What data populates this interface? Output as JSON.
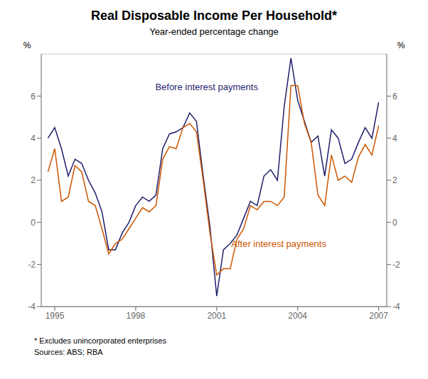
{
  "chart_data": {
    "type": "line",
    "title": "Real Disposable Income Per Household*",
    "subtitle": "Year-ended percentage change",
    "ylabel": "%",
    "y2label": "%",
    "footnote": "*   Excludes unincorporated enterprises",
    "source": "Sources: ABS; RBA",
    "x": [
      1994.75,
      1995.0,
      1995.25,
      1995.5,
      1995.75,
      1996.0,
      1996.25,
      1996.5,
      1996.75,
      1997.0,
      1997.25,
      1997.5,
      1997.75,
      1998.0,
      1998.25,
      1998.5,
      1998.75,
      1999.0,
      1999.25,
      1999.5,
      1999.75,
      2000.0,
      2000.25,
      2000.5,
      2000.75,
      2001.0,
      2001.25,
      2001.5,
      2001.75,
      2002.0,
      2002.25,
      2002.5,
      2002.75,
      2003.0,
      2003.25,
      2003.5,
      2003.75,
      2004.0,
      2004.25,
      2004.5,
      2004.75,
      2005.0,
      2005.25,
      2005.5,
      2005.75,
      2006.0,
      2006.25,
      2006.5,
      2006.75,
      2007.0
    ],
    "series": [
      {
        "name": "Before interest payments",
        "color": "#1f1f6b",
        "values": [
          4.0,
          4.5,
          3.5,
          2.2,
          3.0,
          2.8,
          2.0,
          1.4,
          0.5,
          -1.3,
          -1.3,
          -0.5,
          0.0,
          0.8,
          1.2,
          1.0,
          1.3,
          3.5,
          4.2,
          4.3,
          4.5,
          5.2,
          4.8,
          2.2,
          -0.2,
          -3.5,
          -1.3,
          -1.0,
          -0.6,
          0.2,
          1.0,
          0.8,
          2.2,
          2.5,
          2.0,
          5.5,
          7.8,
          5.8,
          4.8,
          3.8,
          4.1,
          2.2,
          4.4,
          4.0,
          2.8,
          3.0,
          3.8,
          4.5,
          4.0,
          5.7
        ]
      },
      {
        "name": "After interest payments",
        "color": "#cc5500",
        "values": [
          2.4,
          3.5,
          1.0,
          1.2,
          2.7,
          2.4,
          1.0,
          0.8,
          -0.3,
          -1.5,
          -1.0,
          -0.8,
          -0.3,
          0.2,
          0.7,
          0.5,
          0.8,
          3.0,
          3.6,
          3.5,
          4.5,
          4.7,
          4.3,
          2.0,
          -0.5,
          -2.5,
          -2.2,
          -2.2,
          -0.8,
          -0.3,
          0.8,
          0.6,
          1.0,
          1.0,
          0.8,
          1.2,
          6.5,
          6.5,
          4.7,
          3.8,
          1.3,
          0.8,
          3.2,
          2.0,
          2.2,
          1.9,
          3.1,
          3.7,
          3.2,
          4.6
        ]
      }
    ],
    "xlim": [
      1994.5,
      2007.3
    ],
    "xticks": [
      1995,
      1998,
      2001,
      2004,
      2007
    ],
    "ylim": [
      -4,
      8
    ],
    "yticks": [
      -4,
      -2,
      0,
      2,
      4,
      6
    ],
    "y2lim": [
      -4,
      8
    ],
    "y2ticks": [
      -4,
      -2,
      0,
      2,
      4,
      6
    ],
    "grid": true
  }
}
